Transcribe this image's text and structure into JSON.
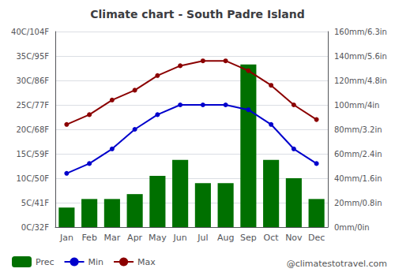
{
  "chart_data": {
    "type": "bar",
    "title": "Climate chart - South Padre Island",
    "categories": [
      "Jan",
      "Feb",
      "Mar",
      "Apr",
      "May",
      "Jun",
      "Jul",
      "Aug",
      "Sep",
      "Oct",
      "Nov",
      "Dec"
    ],
    "series": [
      {
        "name": "Prec",
        "type": "bar",
        "axis": "y2",
        "color": "#007000",
        "values": [
          16,
          23,
          23,
          27,
          42,
          55,
          36,
          36,
          133,
          55,
          40,
          23
        ]
      },
      {
        "name": "Min",
        "type": "line",
        "color": "#0000CC",
        "marker": "circle",
        "values": [
          11,
          13,
          16,
          20,
          23,
          25,
          25,
          25,
          24,
          21,
          16,
          13
        ]
      },
      {
        "name": "Max",
        "type": "line",
        "color": "#8B0000",
        "marker": "circle",
        "values": [
          21,
          23,
          26,
          28,
          31,
          33,
          34,
          34,
          32,
          29,
          25,
          22
        ]
      }
    ],
    "ylim": [
      0,
      40
    ],
    "yticks": [
      {
        "value": 0,
        "label": "0C/32F"
      },
      {
        "value": 5,
        "label": "5C/41F"
      },
      {
        "value": 10,
        "label": "10C/50F"
      },
      {
        "value": 15,
        "label": "15C/59F"
      },
      {
        "value": 20,
        "label": "20C/68F"
      },
      {
        "value": 25,
        "label": "25C/77F"
      },
      {
        "value": 30,
        "label": "30C/86F"
      },
      {
        "value": 35,
        "label": "35C/95F"
      },
      {
        "value": 40,
        "label": "40C/104F"
      }
    ],
    "y2lim": [
      0,
      160
    ],
    "y2ticks": [
      {
        "value": 0,
        "label": "0mm/0in"
      },
      {
        "value": 20,
        "label": "20mm/0.8in"
      },
      {
        "value": 40,
        "label": "40mm/1.6in"
      },
      {
        "value": 60,
        "label": "60mm/2.4in"
      },
      {
        "value": 80,
        "label": "80mm/3.2in"
      },
      {
        "value": 100,
        "label": "100mm/4in"
      },
      {
        "value": 120,
        "label": "120mm/4.8in"
      },
      {
        "value": 140,
        "label": "140mm/5.6in"
      },
      {
        "value": 160,
        "label": "160mm/6.3in"
      }
    ],
    "grid": true,
    "legend": "lower-left",
    "annotations": [
      "@climatestotravel.com"
    ]
  }
}
